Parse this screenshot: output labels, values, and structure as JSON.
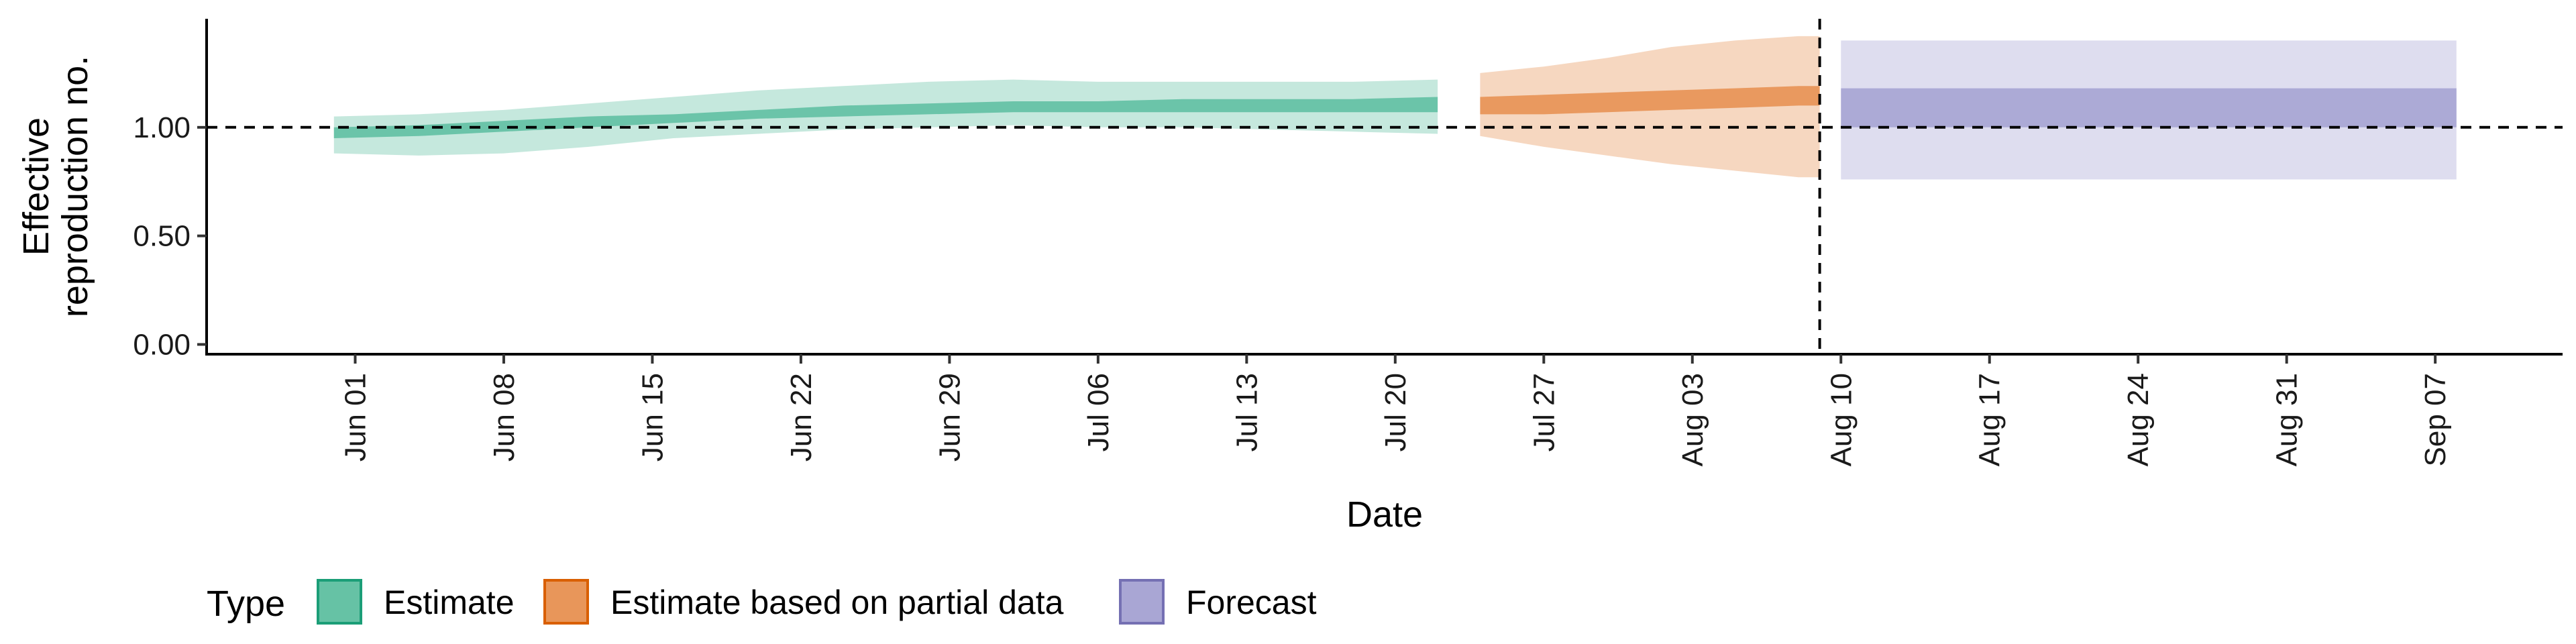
{
  "chart_data": {
    "type": "area",
    "xlabel": "Date",
    "ylabel": "Effective reproduction no.",
    "ylabel_lines": [
      "Effective",
      "reproduction no."
    ],
    "x_ticks": [
      "2020-06-01",
      "2020-06-08",
      "2020-06-15",
      "2020-06-22",
      "2020-06-29",
      "2020-07-06",
      "2020-07-13",
      "2020-07-20",
      "2020-07-27",
      "2020-08-03",
      "2020-08-10",
      "2020-08-17",
      "2020-08-24",
      "2020-08-31",
      "2020-09-07"
    ],
    "x_tick_labels": [
      "Jun 01",
      "Jun 08",
      "Jun 15",
      "Jun 22",
      "Jun 29",
      "Jul 06",
      "Jul 13",
      "Jul 20",
      "Jul 27",
      "Aug 03",
      "Aug 10",
      "Aug 17",
      "Aug 24",
      "Aug 31",
      "Sep 07"
    ],
    "xlim": [
      "2020-05-25",
      "2020-09-13"
    ],
    "y_ticks": [
      0,
      0.5,
      1.0
    ],
    "y_tick_labels": [
      "0.00",
      "0.50",
      "1.00"
    ],
    "ylim": [
      0,
      1.5
    ],
    "grid": false,
    "reference_hline": 1.0,
    "reference_vline": "2020-08-09",
    "legend": {
      "title": "Type",
      "position": "bottom-left",
      "entries": [
        {
          "label": "Estimate",
          "fill": "#66c2a5",
          "stroke": "#1b9e77"
        },
        {
          "label": "Estimate based on partial data",
          "fill": "#e8965a",
          "stroke": "#d95f02"
        },
        {
          "label": "Forecast",
          "fill": "#a9a6d4",
          "stroke": "#7570b3"
        }
      ]
    },
    "series": [
      {
        "name": "Estimate",
        "color": "#66c2a5",
        "x": [
          "2020-05-31",
          "2020-06-04",
          "2020-06-08",
          "2020-06-12",
          "2020-06-16",
          "2020-06-20",
          "2020-06-24",
          "2020-06-28",
          "2020-07-02",
          "2020-07-06",
          "2020-07-10",
          "2020-07-14",
          "2020-07-18",
          "2020-07-22"
        ],
        "lower_90": [
          0.88,
          0.87,
          0.88,
          0.91,
          0.95,
          0.97,
          0.99,
          1.0,
          1.01,
          1.0,
          1.0,
          0.99,
          0.98,
          0.97
        ],
        "lower_50": [
          0.95,
          0.96,
          0.98,
          1.0,
          1.02,
          1.04,
          1.05,
          1.06,
          1.07,
          1.07,
          1.07,
          1.07,
          1.07,
          1.07
        ],
        "upper_50": [
          1.0,
          1.01,
          1.03,
          1.05,
          1.06,
          1.08,
          1.1,
          1.11,
          1.12,
          1.12,
          1.13,
          1.13,
          1.13,
          1.14
        ],
        "upper_90": [
          1.05,
          1.06,
          1.08,
          1.11,
          1.14,
          1.17,
          1.19,
          1.21,
          1.22,
          1.21,
          1.21,
          1.21,
          1.21,
          1.22
        ]
      },
      {
        "name": "Estimate based on partial data",
        "color": "#e8965a",
        "x": [
          "2020-07-24",
          "2020-07-27",
          "2020-07-30",
          "2020-08-02",
          "2020-08-05",
          "2020-08-08",
          "2020-08-09"
        ],
        "lower_90": [
          0.96,
          0.91,
          0.87,
          0.83,
          0.8,
          0.77,
          0.77
        ],
        "lower_50": [
          1.06,
          1.06,
          1.07,
          1.08,
          1.09,
          1.1,
          1.1
        ],
        "upper_50": [
          1.14,
          1.15,
          1.16,
          1.17,
          1.18,
          1.19,
          1.19
        ],
        "upper_90": [
          1.25,
          1.28,
          1.32,
          1.37,
          1.4,
          1.42,
          1.42
        ]
      },
      {
        "name": "Forecast",
        "color": "#a9a6d4",
        "x": [
          "2020-08-10",
          "2020-09-08"
        ],
        "lower_90": [
          0.76,
          0.76
        ],
        "lower_50": [
          1.0,
          1.0
        ],
        "upper_50": [
          1.18,
          1.18
        ],
        "upper_90": [
          1.4,
          1.4
        ]
      }
    ]
  }
}
